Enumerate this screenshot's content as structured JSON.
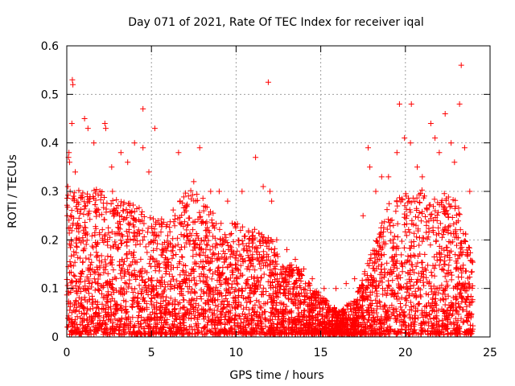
{
  "chart_data": {
    "type": "scatter",
    "title": "Day 071 of 2021, Rate Of TEC Index for receiver iqal",
    "xlabel": "GPS time / hours",
    "ylabel": "ROTI / TECUs",
    "xlim": [
      0,
      25
    ],
    "ylim": [
      0,
      0.6
    ],
    "xticks": [
      0,
      5,
      10,
      15,
      20,
      25
    ],
    "xtick_labels": [
      "0",
      "5",
      "10",
      "15",
      "20",
      "25"
    ],
    "yticks": [
      0,
      0.1,
      0.2,
      0.3,
      0.4,
      0.5,
      0.6
    ],
    "ytick_labels": [
      "0",
      "0.1",
      "0.2",
      "0.3",
      "0.4",
      "0.5",
      "0.6"
    ],
    "grid": true,
    "marker": "+",
    "color": "#ff0000",
    "grid_color": "#a0a0a0",
    "series": [
      {
        "name": "ROTI",
        "x": [
          0.03,
          0.06,
          0.1,
          0.13,
          0.16,
          0.2,
          0.23,
          0.26,
          0.3,
          0.33,
          0.36,
          0.4,
          0.5,
          0.55,
          1.05,
          1.25,
          1.6,
          2.25,
          2.3,
          2.65,
          2.7,
          3.2,
          3.6,
          4.0,
          4.5,
          4.5,
          4.85,
          5.2,
          6.6,
          7.5,
          7.85,
          8.5,
          9.0,
          9.5,
          10.35,
          11.15,
          11.6,
          11.9,
          12.0,
          12.1,
          12.4,
          13.0,
          13.5,
          14.0,
          14.5,
          15.2,
          15.9,
          16.5,
          17.0,
          17.5,
          17.8,
          17.9,
          18.25,
          18.6,
          19.0,
          19.5,
          19.65,
          19.95,
          20.3,
          20.35,
          20.7,
          21.0,
          21.5,
          21.75,
          22.0,
          22.35,
          22.7,
          22.9,
          23.2,
          23.3,
          23.5,
          23.8
        ],
        "y": [
          0.25,
          0.31,
          0.37,
          0.38,
          0.36,
          0.3,
          0.25,
          0.2,
          0.44,
          0.53,
          0.52,
          0.29,
          0.34,
          0.2,
          0.45,
          0.43,
          0.4,
          0.44,
          0.43,
          0.35,
          0.3,
          0.38,
          0.36,
          0.4,
          0.47,
          0.39,
          0.34,
          0.43,
          0.38,
          0.32,
          0.39,
          0.3,
          0.3,
          0.28,
          0.3,
          0.37,
          0.31,
          0.525,
          0.3,
          0.28,
          0.2,
          0.18,
          0.16,
          0.14,
          0.12,
          0.1,
          0.1,
          0.11,
          0.12,
          0.25,
          0.39,
          0.35,
          0.3,
          0.33,
          0.33,
          0.38,
          0.48,
          0.41,
          0.4,
          0.48,
          0.35,
          0.33,
          0.44,
          0.41,
          0.38,
          0.46,
          0.4,
          0.36,
          0.48,
          0.56,
          0.39,
          0.3
        ],
        "envelope": {
          "hours": [
            0,
            1,
            2,
            3,
            4,
            5,
            6,
            7,
            8,
            9,
            10,
            11,
            12,
            13,
            14,
            15,
            16,
            17,
            18,
            19,
            20,
            21,
            22,
            23,
            24
          ],
          "upper_roti": [
            0.3,
            0.3,
            0.3,
            0.28,
            0.27,
            0.24,
            0.25,
            0.3,
            0.29,
            0.23,
            0.23,
            0.22,
            0.2,
            0.15,
            0.13,
            0.08,
            0.05,
            0.07,
            0.17,
            0.27,
            0.29,
            0.3,
            0.3,
            0.28,
            0.15
          ]
        }
      }
    ]
  }
}
